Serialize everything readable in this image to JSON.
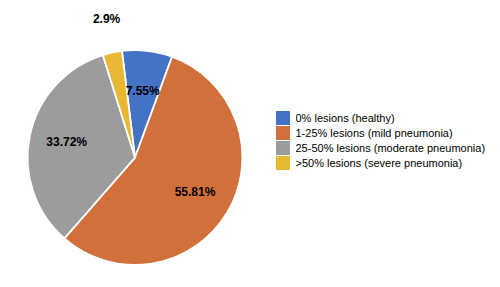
{
  "chart_data": {
    "type": "pie",
    "categories": [
      "0% lesions (healthy)",
      "1-25% lesions (mild pneumonia)",
      "25-50% lesions (moderate pneumonia)",
      ">50% lesions (severe pneumonia)"
    ],
    "values": [
      7.55,
      55.81,
      33.72,
      2.9
    ],
    "value_labels": [
      "7.55%",
      "55.81%",
      "33.72%",
      "2.9%"
    ],
    "colors": [
      "#4472c4",
      "#d2703c",
      "#9c9c9c",
      "#e8b832"
    ],
    "data_labels": true,
    "legend": "right"
  }
}
